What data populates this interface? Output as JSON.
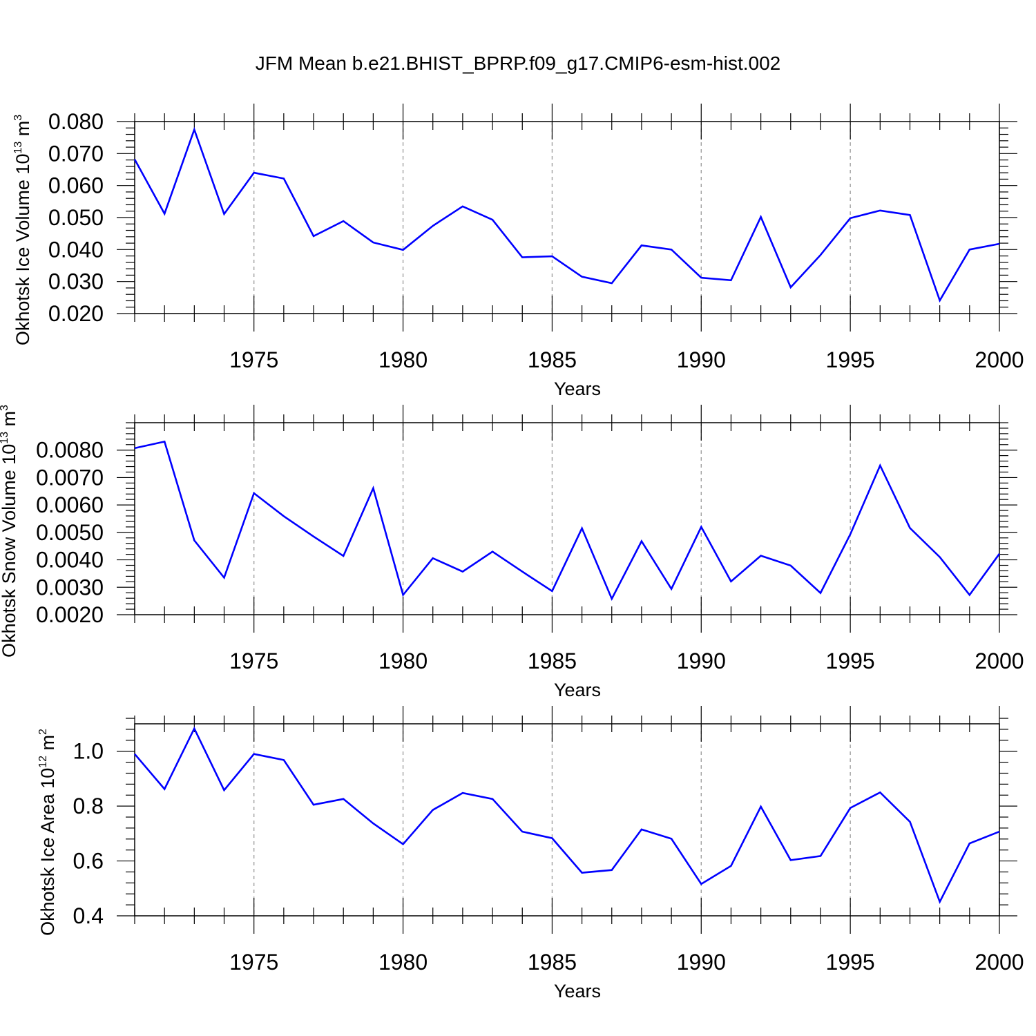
{
  "title": "JFM Mean b.e21.BHIST_BPRP.f09_g17.CMIP6-esm-hist.002",
  "chart_data": [
    {
      "type": "line",
      "panel": "ice_volume",
      "ylabel_text": "Okhotsk Ice Volume 10",
      "ylabel_exp": "13",
      "ylabel_unit": " m",
      "ylabel_unit_exp": "3",
      "xlabel": "Years",
      "xlim": [
        1971,
        2000
      ],
      "ylim": [
        0.02,
        0.08
      ],
      "yticks": [
        0.02,
        0.03,
        0.04,
        0.05,
        0.06,
        0.07,
        0.08
      ],
      "ytick_labels": [
        "0.020",
        "0.030",
        "0.040",
        "0.050",
        "0.060",
        "0.070",
        "0.080"
      ],
      "xticks": [
        1975,
        1980,
        1985,
        1990,
        1995,
        2000
      ],
      "xtick_labels": [
        "1975",
        "1980",
        "1985",
        "1990",
        "1995",
        "2000"
      ],
      "line_color": "#0000ff",
      "x": [
        1971,
        1972,
        1973,
        1974,
        1975,
        1976,
        1977,
        1978,
        1979,
        1980,
        1981,
        1982,
        1983,
        1984,
        1985,
        1986,
        1987,
        1988,
        1989,
        1990,
        1991,
        1992,
        1993,
        1994,
        1995,
        1996,
        1997,
        1998,
        1999,
        2000
      ],
      "values": [
        0.0682,
        0.0512,
        0.0775,
        0.0511,
        0.064,
        0.0622,
        0.0442,
        0.0489,
        0.0422,
        0.0399,
        0.0474,
        0.0535,
        0.0493,
        0.0376,
        0.0379,
        0.0315,
        0.0295,
        0.0413,
        0.04,
        0.0312,
        0.0304,
        0.0502,
        0.0282,
        0.0383,
        0.0498,
        0.0522,
        0.0508,
        0.0241,
        0.04,
        0.0418
      ]
    },
    {
      "type": "line",
      "panel": "snow_volume",
      "ylabel_text": "Okhotsk Snow Volume 10",
      "ylabel_exp": "13",
      "ylabel_unit": " m",
      "ylabel_unit_exp": "3",
      "xlabel": "Years",
      "xlim": [
        1971,
        2000
      ],
      "ylim": [
        0.002,
        0.009
      ],
      "yticks": [
        0.002,
        0.003,
        0.004,
        0.005,
        0.006,
        0.007,
        0.008
      ],
      "ytick_labels": [
        "0.0020",
        "0.0030",
        "0.0040",
        "0.0050",
        "0.0060",
        "0.0070",
        "0.0080"
      ],
      "xticks": [
        1975,
        1980,
        1985,
        1990,
        1995,
        2000
      ],
      "xtick_labels": [
        "1975",
        "1980",
        "1985",
        "1990",
        "1995",
        "2000"
      ],
      "line_color": "#0000ff",
      "x": [
        1971,
        1972,
        1973,
        1974,
        1975,
        1976,
        1977,
        1978,
        1979,
        1980,
        1981,
        1982,
        1983,
        1984,
        1985,
        1986,
        1987,
        1988,
        1989,
        1990,
        1991,
        1992,
        1993,
        1994,
        1995,
        1996,
        1997,
        1998,
        1999,
        2000
      ],
      "values": [
        0.00807,
        0.00831,
        0.00471,
        0.00335,
        0.00643,
        0.00559,
        0.00485,
        0.00414,
        0.00661,
        0.00272,
        0.00406,
        0.00357,
        0.0043,
        0.00357,
        0.00286,
        0.00515,
        0.00258,
        0.00468,
        0.00294,
        0.0052,
        0.00321,
        0.00415,
        0.00379,
        0.00279,
        0.00493,
        0.00744,
        0.00516,
        0.0041,
        0.00272,
        0.00422
      ]
    },
    {
      "type": "line",
      "panel": "ice_area",
      "ylabel_text": "Okhotsk Ice Area 10",
      "ylabel_exp": "12",
      "ylabel_unit": " m",
      "ylabel_unit_exp": "2",
      "xlabel": "Years",
      "xlim": [
        1971,
        2000
      ],
      "ylim": [
        0.4,
        1.1
      ],
      "yticks": [
        0.4,
        0.6,
        0.8,
        1.0
      ],
      "ytick_labels": [
        "0.4",
        "0.6",
        "0.8",
        "1.0"
      ],
      "xticks": [
        1975,
        1980,
        1985,
        1990,
        1995,
        2000
      ],
      "xtick_labels": [
        "1975",
        "1980",
        "1985",
        "1990",
        "1995",
        "2000"
      ],
      "line_color": "#0000ff",
      "x": [
        1971,
        1972,
        1973,
        1974,
        1975,
        1976,
        1977,
        1978,
        1979,
        1980,
        1981,
        1982,
        1983,
        1984,
        1985,
        1986,
        1987,
        1988,
        1989,
        1990,
        1991,
        1992,
        1993,
        1994,
        1995,
        1996,
        1997,
        1998,
        1999,
        2000
      ],
      "values": [
        0.99,
        0.862,
        1.083,
        0.858,
        0.99,
        0.968,
        0.805,
        0.826,
        0.737,
        0.661,
        0.786,
        0.848,
        0.826,
        0.707,
        0.683,
        0.557,
        0.567,
        0.715,
        0.681,
        0.516,
        0.582,
        0.798,
        0.603,
        0.618,
        0.793,
        0.85,
        0.743,
        0.451,
        0.664,
        0.707
      ]
    }
  ]
}
